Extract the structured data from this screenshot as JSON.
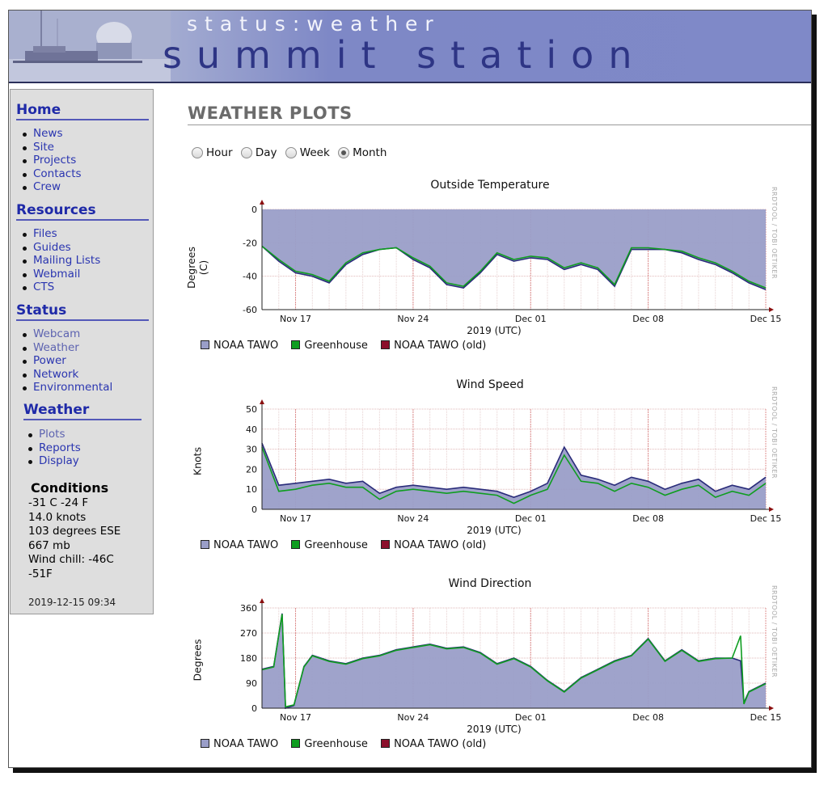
{
  "banner": {
    "subtitle": "status:weather",
    "title": "summit station"
  },
  "sidebar": {
    "home": {
      "title": "Home",
      "items": [
        "News",
        "Site",
        "Projects",
        "Contacts",
        "Crew"
      ]
    },
    "resources": {
      "title": "Resources",
      "items": [
        "Files",
        "Guides",
        "Mailing Lists",
        "Webmail",
        "CTS"
      ]
    },
    "status": {
      "title": "Status",
      "items": [
        "Webcam",
        "Weather",
        "Power",
        "Network",
        "Environmental"
      ]
    },
    "weather": {
      "title": "Weather",
      "items": [
        "Plots",
        "Reports",
        "Display"
      ]
    },
    "conditions": {
      "title": "Conditions",
      "lines": [
        "-31 C -24 F",
        "14.0 knots",
        "103 degrees ESE",
        "667 mb",
        "Wind chill: -46C",
        "-51F"
      ],
      "timestamp": "2019-12-15 09:34"
    }
  },
  "main": {
    "title": "WEATHER PLOTS",
    "ranges": [
      {
        "label": "Hour",
        "selected": false
      },
      {
        "label": "Day",
        "selected": false
      },
      {
        "label": "Week",
        "selected": false
      },
      {
        "label": "Month",
        "selected": true
      }
    ]
  },
  "colors": {
    "noaa_fill": "#9a9ec8",
    "noaa_line": "#2a2c7a",
    "greenhouse": "#0f9d20",
    "noaa_old": "#8b0f2b"
  },
  "watermark": "RRDTOOL / TOBI OETIKER",
  "chart_data": [
    {
      "type": "area",
      "title": "Outside Temperature",
      "ylabel": "Degrees (C)",
      "xlabel": "2019 (UTC)",
      "x_ticks": [
        "Nov 17",
        "Nov 24",
        "Dec 01",
        "Dec 08",
        "Dec 15"
      ],
      "ylim": [
        -60,
        0
      ],
      "y_ticks": [
        0,
        -20,
        -40,
        -60
      ],
      "grid": true,
      "legend": [
        "NOAA TAWO",
        "Greenhouse",
        "NOAA TAWO (old)"
      ],
      "x_day": [
        0,
        1,
        2,
        3,
        4,
        5,
        6,
        7,
        8,
        9,
        10,
        11,
        12,
        13,
        14,
        15,
        16,
        17,
        18,
        19,
        20,
        21,
        22,
        23,
        24,
        25,
        26,
        27,
        28,
        29,
        30
      ],
      "series": [
        {
          "name": "NOAA TAWO",
          "values": [
            -22,
            -31,
            -38,
            -40,
            -44,
            -33,
            -27,
            -24,
            -23,
            -30,
            -35,
            -45,
            -47,
            -38,
            -27,
            -31,
            -29,
            -30,
            -36,
            -33,
            -36,
            -46,
            -24,
            -24,
            -24,
            -26,
            -30,
            -33,
            -38,
            -44,
            -48
          ]
        },
        {
          "name": "Greenhouse",
          "values": [
            -22,
            -30,
            -37,
            -39,
            -43,
            -32,
            -26,
            -24,
            -23,
            -29,
            -34,
            -44,
            -46,
            -37,
            -26,
            -30,
            -28,
            -29,
            -35,
            -32,
            -35,
            -45,
            -23,
            -23,
            -24,
            -25,
            -29,
            -32,
            -37,
            -43,
            -47
          ]
        }
      ]
    },
    {
      "type": "area",
      "title": "Wind Speed",
      "ylabel": "Knots",
      "xlabel": "2019 (UTC)",
      "x_ticks": [
        "Nov 17",
        "Nov 24",
        "Dec 01",
        "Dec 08",
        "Dec 15"
      ],
      "ylim": [
        0,
        50
      ],
      "y_ticks": [
        0,
        10,
        20,
        30,
        40,
        50
      ],
      "grid": true,
      "legend": [
        "NOAA TAWO",
        "Greenhouse",
        "NOAA TAWO (old)"
      ],
      "x_day": [
        0,
        1,
        2,
        3,
        4,
        5,
        6,
        7,
        8,
        9,
        10,
        11,
        12,
        13,
        14,
        15,
        16,
        17,
        18,
        19,
        20,
        21,
        22,
        23,
        24,
        25,
        26,
        27,
        28,
        29,
        30
      ],
      "series": [
        {
          "name": "NOAA TAWO",
          "values": [
            33,
            12,
            13,
            14,
            15,
            13,
            14,
            8,
            11,
            12,
            11,
            10,
            11,
            10,
            9,
            6,
            9,
            13,
            31,
            17,
            15,
            12,
            16,
            14,
            10,
            13,
            15,
            9,
            12,
            10,
            16
          ]
        },
        {
          "name": "Greenhouse",
          "values": [
            31,
            9,
            10,
            12,
            13,
            11,
            11,
            5,
            9,
            10,
            9,
            8,
            9,
            8,
            7,
            3,
            7,
            10,
            27,
            14,
            13,
            9,
            13,
            11,
            7,
            10,
            12,
            6,
            9,
            7,
            13
          ]
        }
      ]
    },
    {
      "type": "area",
      "title": "Wind Direction",
      "ylabel": "Degrees",
      "xlabel": "2019 (UTC)",
      "x_ticks": [
        "Nov 17",
        "Nov 24",
        "Dec 01",
        "Dec 08",
        "Dec 15"
      ],
      "ylim": [
        0,
        360
      ],
      "y_ticks": [
        0,
        90,
        180,
        270,
        360
      ],
      "grid": true,
      "legend": [
        "NOAA TAWO",
        "Greenhouse",
        "NOAA TAWO (old)"
      ],
      "x_day": [
        0,
        0.7,
        1.2,
        1.4,
        1.9,
        2.5,
        3.0,
        4.0,
        5.0,
        6.0,
        7.0,
        8.0,
        9.0,
        10.0,
        11.0,
        12.0,
        13.0,
        14.0,
        15.0,
        16.0,
        17.0,
        18.0,
        19.0,
        20.0,
        21.0,
        22.0,
        23.0,
        24.0,
        25.0,
        26.0,
        27.0,
        28.0,
        28.5,
        28.7,
        29.0,
        30.0
      ],
      "series": [
        {
          "name": "NOAA TAWO",
          "values": [
            140,
            150,
            340,
            0,
            10,
            150,
            190,
            170,
            160,
            180,
            190,
            210,
            220,
            230,
            215,
            220,
            200,
            160,
            180,
            150,
            100,
            60,
            110,
            140,
            170,
            190,
            250,
            170,
            210,
            170,
            180,
            180,
            170,
            20,
            60,
            90
          ]
        },
        {
          "name": "Greenhouse",
          "values": [
            138,
            148,
            338,
            5,
            12,
            148,
            188,
            168,
            158,
            178,
            188,
            208,
            218,
            228,
            213,
            218,
            198,
            158,
            178,
            148,
            98,
            58,
            108,
            138,
            168,
            188,
            248,
            168,
            208,
            168,
            178,
            180,
            260,
            15,
            58,
            88
          ]
        }
      ]
    }
  ]
}
